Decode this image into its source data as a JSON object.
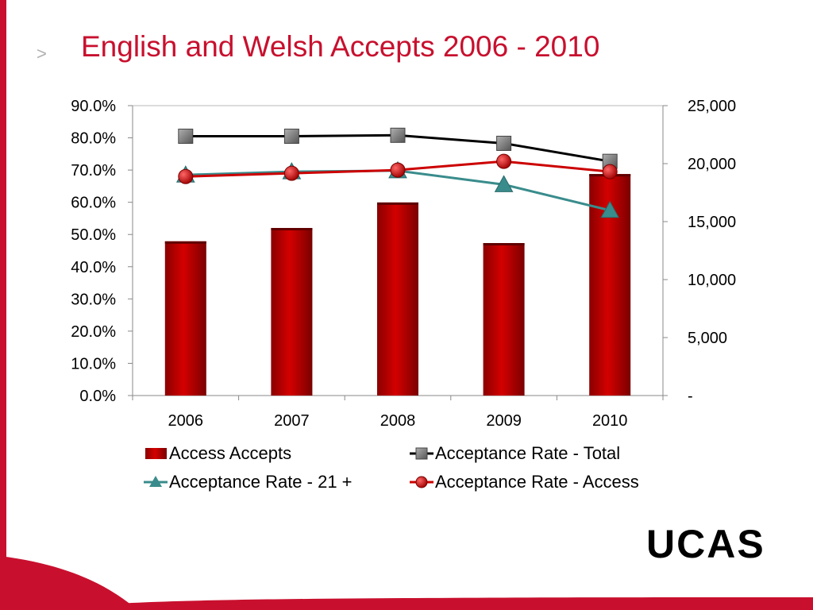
{
  "slide": {
    "bullet": ">",
    "title": "English and Welsh Accepts 2006 - 2010",
    "logo_text": "UCAS"
  },
  "colors": {
    "accent": "#c8102e",
    "bar": "#b00000",
    "total": "#000000",
    "age21": "#3a8c8c",
    "access": "#cc0000"
  },
  "chart_data": {
    "type": "bar",
    "categories": [
      "2006",
      "2007",
      "2008",
      "2009",
      "2010"
    ],
    "left_axis": {
      "ticks": [
        "0.0%",
        "10.0%",
        "20.0%",
        "30.0%",
        "40.0%",
        "50.0%",
        "60.0%",
        "70.0%",
        "80.0%",
        "90.0%"
      ],
      "ylim": [
        0,
        90
      ]
    },
    "right_axis": {
      "ticks": [
        "-",
        "5,000",
        "10,000",
        "15,000",
        "20,000",
        "25,000"
      ],
      "ylim": [
        0,
        25000
      ]
    },
    "series": [
      {
        "name": "Access Accepts",
        "type": "bar",
        "axis": "right",
        "values": [
          13300,
          14450,
          16650,
          13150,
          19100
        ]
      },
      {
        "name": "Acceptance Rate - Total",
        "type": "line",
        "axis": "left",
        "marker": "square",
        "values": [
          80.5,
          80.5,
          80.8,
          78.3,
          72.7
        ]
      },
      {
        "name": "Acceptance Rate - 21 +",
        "type": "line",
        "axis": "left",
        "marker": "triangle",
        "values": [
          68.5,
          69.5,
          69.8,
          65.5,
          57.5
        ]
      },
      {
        "name": "Acceptance Rate - Access",
        "type": "line",
        "axis": "left",
        "marker": "circle",
        "values": [
          68.0,
          69.0,
          70.0,
          72.7,
          69.5
        ]
      }
    ],
    "grid": false,
    "legend": "bottom"
  }
}
